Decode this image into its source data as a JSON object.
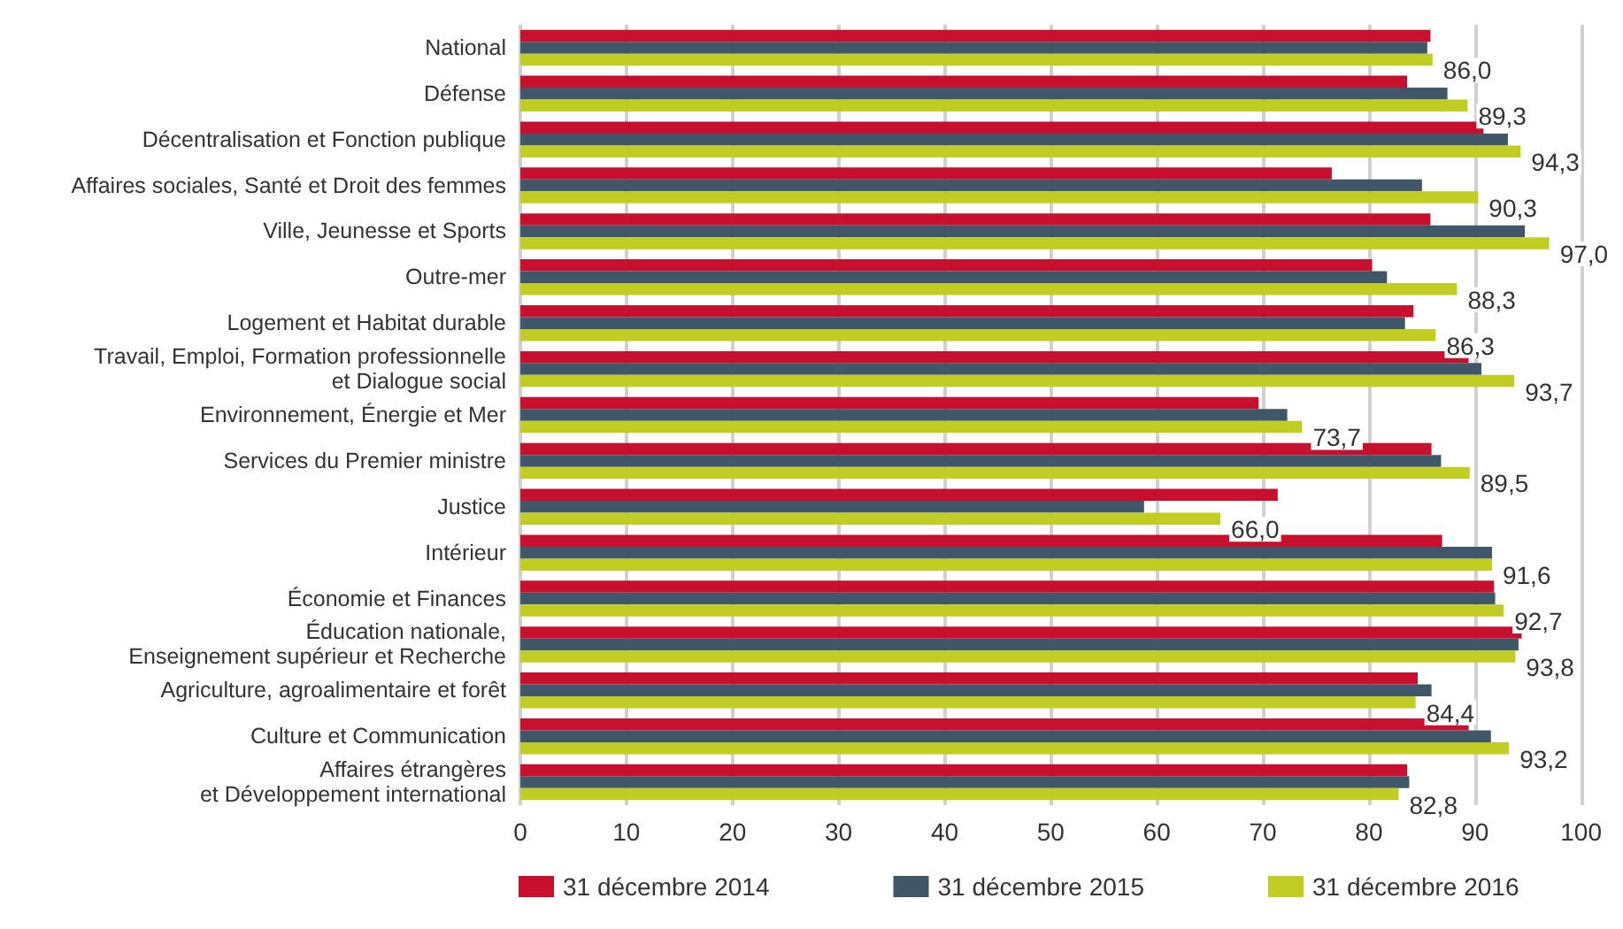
{
  "chart_data": {
    "type": "bar",
    "orientation": "horizontal",
    "categories": [
      "National",
      "Défense",
      "Décentralisation et Fonction publique",
      "Affaires sociales, Santé et Droit des femmes",
      "Ville, Jeunesse et Sports",
      "Outre-mer",
      "Logement et Habitat durable",
      "Travail, Emploi, Formation professionnelle\net Dialogue social",
      "Environnement, Énergie et Mer",
      "Services du Premier ministre",
      "Justice",
      "Intérieur",
      "Économie et Finances",
      "Éducation nationale,\nEnseignement supérieur et Recherche",
      "Agriculture, agroalimentaire et forêt",
      "Culture et Communication",
      "Affaires étrangères\net Développement international"
    ],
    "series": [
      {
        "name": "31 décembre 2014",
        "color": "#c8102e",
        "values": [
          85.8,
          83.6,
          90.8,
          76.5,
          85.8,
          80.3,
          84.2,
          89.4,
          69.6,
          85.9,
          71.4,
          86.9,
          91.8,
          94.4,
          84.6,
          89.4,
          83.6
        ]
      },
      {
        "name": "31 décembre 2015",
        "color": "#3f5768",
        "values": [
          85.5,
          87.4,
          93.1,
          85.0,
          94.7,
          81.7,
          83.4,
          90.6,
          72.3,
          86.8,
          58.8,
          91.6,
          91.9,
          94.1,
          85.9,
          91.5,
          83.8
        ]
      },
      {
        "name": "31 décembre 2016",
        "color": "#c2cd23",
        "values": [
          86.0,
          89.3,
          94.3,
          90.3,
          97.0,
          88.3,
          86.3,
          93.7,
          73.7,
          89.5,
          66.0,
          91.6,
          92.7,
          93.8,
          84.4,
          93.2,
          82.8
        ],
        "value_labels": [
          "86,0",
          "89,3",
          "94,3",
          "90,3",
          "97,0",
          "88,3",
          "86,3",
          "93,7",
          "73,7",
          "89,5",
          "66,0",
          "91,6",
          "92,7",
          "93,8",
          "84,4",
          "93,2",
          "82,8"
        ]
      }
    ],
    "xlim": [
      0,
      100
    ],
    "xticks": [
      0,
      10,
      20,
      30,
      40,
      50,
      60,
      70,
      80,
      90,
      100
    ],
    "grid": "x",
    "legend": "bottom"
  }
}
